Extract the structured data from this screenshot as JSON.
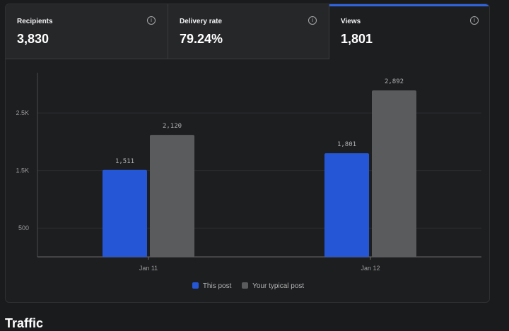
{
  "metrics": [
    {
      "label": "Recipients",
      "value": "3,830"
    },
    {
      "label": "Delivery rate",
      "value": "79.24%"
    },
    {
      "label": "Views",
      "value": "1,801"
    }
  ],
  "info_glyph": "i",
  "chart_data": {
    "type": "bar",
    "categories": [
      "Jan 11",
      "Jan 12"
    ],
    "series": [
      {
        "name": "This post",
        "values": [
          1511,
          1801
        ],
        "labels": [
          "1,511",
          "1,801"
        ],
        "color": "#2456d6"
      },
      {
        "name": "Your typical post",
        "values": [
          2120,
          2892
        ],
        "labels": [
          "2,120",
          "2,892"
        ],
        "color": "#5a5b5c"
      }
    ],
    "yticks": [
      500,
      1500,
      2500
    ],
    "ytick_labels": [
      "500",
      "1.5K",
      "2.5K"
    ],
    "ylim": [
      0,
      3200
    ],
    "grid": true,
    "legend_position": "bottom-center"
  },
  "colors": {
    "accent": "#2f63e0",
    "background": "#1a1b1d"
  },
  "section_title": "Traffic"
}
